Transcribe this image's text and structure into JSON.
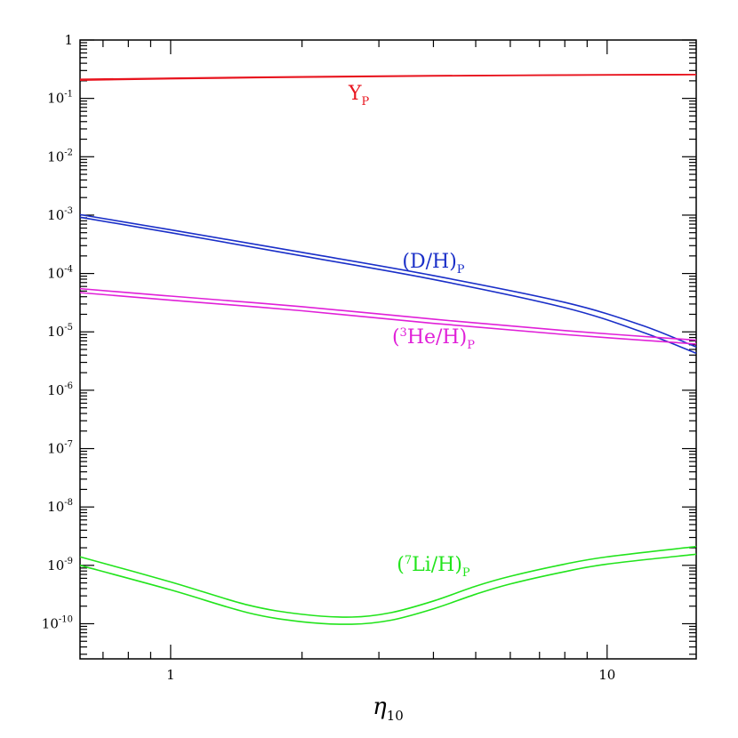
{
  "chart_data": {
    "type": "line",
    "title": "",
    "xlabel": "η",
    "xlabel_subscript": "10",
    "ylabel": "",
    "xscale": "log",
    "yscale": "log",
    "xlim": [
      0.62,
      16.0
    ],
    "ylim": [
      2.5e-11,
      1.0
    ],
    "grid": false,
    "x_ticks": [
      {
        "value": 1,
        "label": "1"
      },
      {
        "value": 10,
        "label": "10"
      }
    ],
    "y_ticks": [
      {
        "value": 1,
        "base": "1",
        "exp": ""
      },
      {
        "value": 0.1,
        "base": "10",
        "exp": "-1"
      },
      {
        "value": 0.01,
        "base": "10",
        "exp": "-2"
      },
      {
        "value": 0.001,
        "base": "10",
        "exp": "-3"
      },
      {
        "value": 0.0001,
        "base": "10",
        "exp": "-4"
      },
      {
        "value": 1e-05,
        "base": "10",
        "exp": "-5"
      },
      {
        "value": 1e-06,
        "base": "10",
        "exp": "-6"
      },
      {
        "value": 1e-07,
        "base": "10",
        "exp": "-7"
      },
      {
        "value": 1e-08,
        "base": "10",
        "exp": "-8"
      },
      {
        "value": 1e-09,
        "base": "10",
        "exp": "-9"
      },
      {
        "value": 1e-10,
        "base": "10",
        "exp": "-10"
      }
    ],
    "series": [
      {
        "name": "Y_P upper",
        "group": "Yp",
        "color": "#e8141e",
        "x": [
          0.62,
          1,
          2,
          4,
          8,
          16
        ],
        "y": [
          0.212,
          0.222,
          0.235,
          0.245,
          0.252,
          0.257
        ]
      },
      {
        "name": "Y_P lower",
        "group": "Yp",
        "color": "#e8141e",
        "x": [
          0.62,
          1,
          2,
          4,
          8,
          16
        ],
        "y": [
          0.205,
          0.217,
          0.231,
          0.242,
          0.25,
          0.255
        ]
      },
      {
        "name": "(D/H)_P upper",
        "group": "DH",
        "color": "#1a2fc8",
        "x": [
          0.62,
          1,
          2,
          4,
          8,
          12,
          16
        ],
        "y": [
          0.00102,
          0.00056,
          0.00023,
          9.2e-05,
          3.2e-05,
          1.3e-05,
          5.5e-06
        ]
      },
      {
        "name": "(D/H)_P lower",
        "group": "DH",
        "color": "#1a2fc8",
        "x": [
          0.62,
          1,
          2,
          4,
          8,
          12,
          16
        ],
        "y": [
          0.00092,
          0.0005,
          0.0002,
          7.9e-05,
          2.6e-05,
          1e-05,
          4.3e-06
        ]
      },
      {
        "name": "(3He/H)_P upper",
        "group": "He3",
        "color": "#e020d8",
        "x": [
          0.62,
          1,
          2,
          4,
          8,
          16
        ],
        "y": [
          5.5e-05,
          4.1e-05,
          2.7e-05,
          1.65e-05,
          1.05e-05,
          7.2e-06
        ]
      },
      {
        "name": "(3He/H)_P lower",
        "group": "He3",
        "color": "#e020d8",
        "x": [
          0.62,
          1,
          2,
          4,
          8,
          16
        ],
        "y": [
          4.7e-05,
          3.5e-05,
          2.3e-05,
          1.4e-05,
          9e-06,
          6.2e-06
        ]
      },
      {
        "name": "(7Li/H)_P upper",
        "group": "Li7",
        "color": "#22e41c",
        "x": [
          0.62,
          1,
          1.5,
          2,
          2.6,
          3.2,
          4,
          5,
          6,
          8,
          10,
          16
        ],
        "y": [
          1.4e-09,
          5.2e-10,
          2.1e-10,
          1.45e-10,
          1.3e-10,
          1.55e-10,
          2.45e-10,
          4.4e-10,
          6.5e-10,
          1.05e-09,
          1.4e-09,
          2.1e-09
        ]
      },
      {
        "name": "(7Li/H)_P lower",
        "group": "Li7",
        "color": "#22e41c",
        "x": [
          0.62,
          1,
          1.5,
          2,
          2.6,
          3.2,
          4,
          5,
          6,
          8,
          10,
          16
        ],
        "y": [
          1e-09,
          3.8e-10,
          1.55e-10,
          1.08e-10,
          9.8e-11,
          1.15e-10,
          1.8e-10,
          3.2e-10,
          4.8e-10,
          7.8e-10,
          1.05e-09,
          1.55e-09
        ]
      }
    ],
    "annotations": [
      {
        "id": "Yp",
        "main": "Y",
        "pre_sup": "",
        "sub": "P",
        "color": "#e8141e",
        "x": 2.7,
        "y": 0.095
      },
      {
        "id": "DH",
        "main": "(D/H)",
        "pre_sup": "",
        "sub": "P",
        "color": "#1a2fc8",
        "x": 4.0,
        "y": 0.000126
      },
      {
        "id": "He3",
        "main": "He/H)",
        "pre_sup": "3",
        "sub": "P",
        "color": "#e020d8",
        "x": 4.0,
        "y": 6.4e-06
      },
      {
        "id": "Li7",
        "main": "Li/H)",
        "pre_sup": "7",
        "sub": "P",
        "color": "#22e41c",
        "x": 4.0,
        "y": 8e-10
      }
    ]
  }
}
